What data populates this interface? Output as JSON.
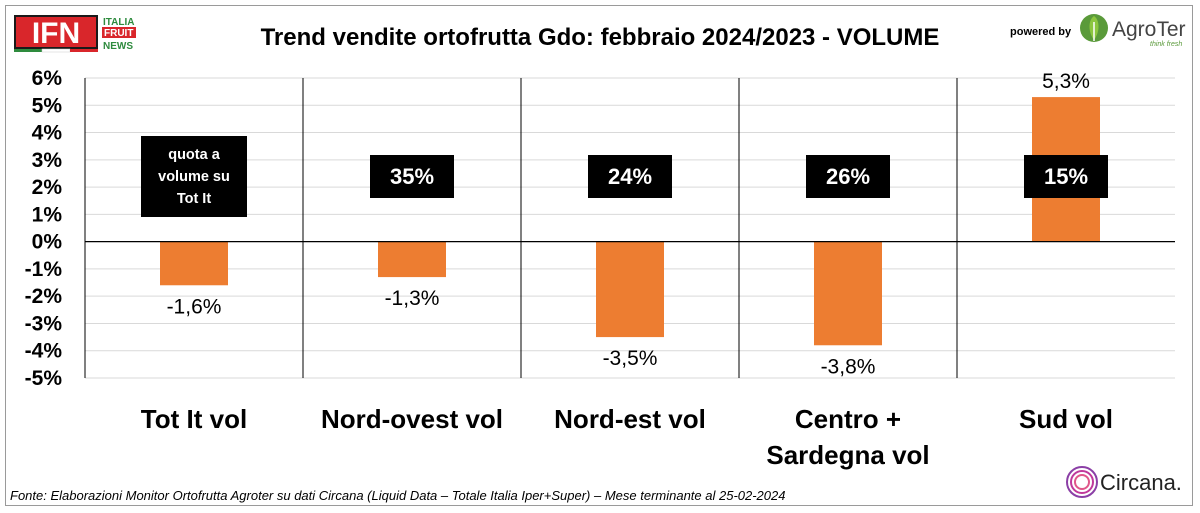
{
  "header": {
    "title": "Trend vendite ortofrutta Gdo: febbraio 2024/2023 - VOLUME",
    "powered_by": "powered by"
  },
  "logos": {
    "ifn": {
      "main": "IFN",
      "line1": "ITALIA",
      "line2": "FRUIT",
      "line3": "NEWS"
    },
    "agroter": {
      "name": "AgroTer",
      "tagline": "think fresh"
    },
    "circana": {
      "name": "Circana."
    }
  },
  "footer": {
    "source": "Fonte: Elaborazioni Monitor Ortofrutta Agroter su dati Circana (Liquid Data – Totale Italia Iper+Super) – Mese terminante al 25-02-2024"
  },
  "colors": {
    "bar": "#ED7D31",
    "badge": "#000000",
    "grid": "#d9d9d9",
    "axis": "#000000"
  },
  "chart_data": {
    "type": "bar",
    "categories": [
      [
        "Tot It  vol"
      ],
      [
        "Nord-ovest vol"
      ],
      [
        "Nord-est vol"
      ],
      [
        "Centro +",
        "Sardegna vol"
      ],
      [
        "Sud vol"
      ]
    ],
    "values": [
      -1.6,
      -1.3,
      -3.5,
      -3.8,
      5.3
    ],
    "value_labels": [
      "-1,6%",
      "-1,3%",
      "-3,5%",
      "-3,8%",
      "5,3%"
    ],
    "share_labels": [
      [
        "quota a",
        "volume su",
        "Tot It"
      ],
      [
        "35%"
      ],
      [
        "24%"
      ],
      [
        "26%"
      ],
      [
        "15%"
      ]
    ],
    "y_ticks": [
      6,
      5,
      4,
      3,
      2,
      1,
      0,
      -1,
      -2,
      -3,
      -4,
      -5
    ],
    "y_tick_labels": [
      "6%",
      "5%",
      "4%",
      "3%",
      "2%",
      "1%",
      "0%",
      "-1%",
      "-2%",
      "-3%",
      "-4%",
      "-5%"
    ],
    "ylim": [
      -5,
      6
    ],
    "grid": true,
    "xlabel": "",
    "ylabel": ""
  }
}
